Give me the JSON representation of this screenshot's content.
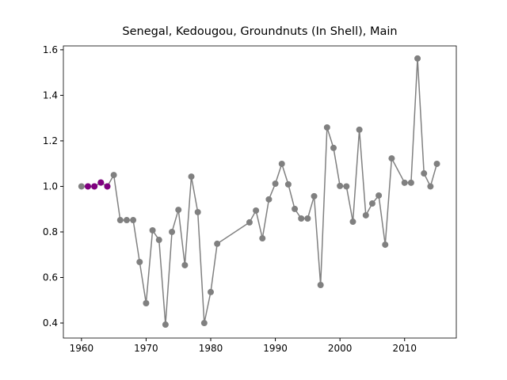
{
  "chart_data": {
    "type": "line",
    "title": "Senegal, Kedougou, Groundnuts (In Shell), Main",
    "xlim": [
      1957.2,
      2018.0
    ],
    "ylim": [
      0.334,
      1.617
    ],
    "xticks": [
      1960,
      1970,
      1980,
      1990,
      2000,
      2010
    ],
    "yticks": [
      {
        "value": 0.4,
        "label": "0.4"
      },
      {
        "value": 0.6,
        "label": "0.6"
      },
      {
        "value": 0.8,
        "label": "0.8"
      },
      {
        "value": 1.0,
        "label": "1.0"
      },
      {
        "value": 1.2,
        "label": "1.2"
      },
      {
        "value": 1.4,
        "label": "1.4"
      },
      {
        "value": 1.6,
        "label": "1.6"
      }
    ],
    "series": [
      {
        "color": "#808080",
        "line": true,
        "x": [
          1960,
          1961,
          1962,
          1963,
          1964,
          1965,
          1966,
          1967,
          1968,
          1969,
          1970,
          1971,
          1972,
          1973,
          1974,
          1975,
          1976,
          1977,
          1978,
          1979,
          1980,
          1981,
          1986,
          1987,
          1988,
          1989,
          1990,
          1991,
          1992,
          1993,
          1994,
          1995,
          1996,
          1997,
          1998,
          1999,
          2000,
          2001,
          2002,
          2003,
          2004,
          2005,
          2006,
          2007,
          2008,
          2010,
          2011,
          2012,
          2013,
          2014,
          2015
        ],
        "values": [
          1.0,
          1.0,
          1.0,
          1.017,
          1.0,
          1.05,
          0.852,
          0.852,
          0.852,
          0.668,
          0.487,
          0.807,
          0.765,
          0.393,
          0.8,
          0.897,
          0.654,
          1.043,
          0.887,
          0.4,
          0.536,
          0.748,
          0.842,
          0.894,
          0.772,
          0.943,
          1.012,
          1.099,
          1.009,
          0.901,
          0.859,
          0.859,
          0.957,
          0.567,
          1.259,
          1.169,
          1.002,
          1.0,
          0.845,
          1.249,
          0.873,
          0.925,
          0.96,
          0.744,
          1.123,
          1.016,
          1.016,
          1.562,
          1.057,
          1.0,
          1.099
        ]
      },
      {
        "color": "#800080",
        "line": false,
        "x": [
          1961,
          1962,
          1963,
          1964
        ],
        "values": [
          1.0,
          1.0,
          1.017,
          1.0
        ]
      }
    ]
  }
}
